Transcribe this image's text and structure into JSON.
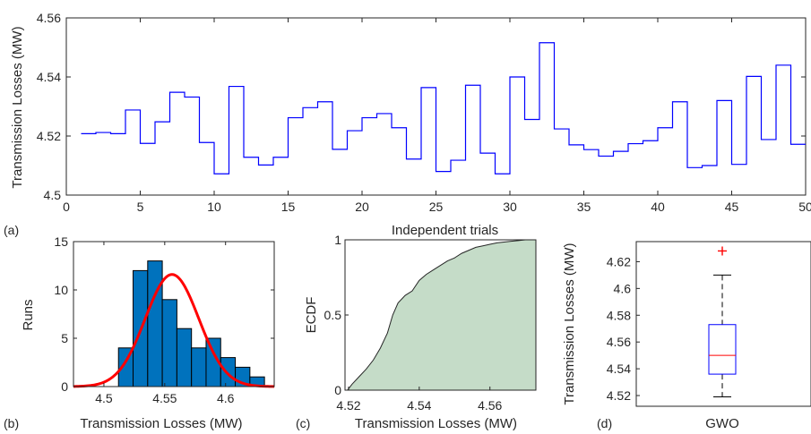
{
  "chart_data": [
    {
      "panel": "(a)",
      "type": "line",
      "xlabel": "Independent trials",
      "ylabel": "Transmission Losses (MW)",
      "xlim": [
        0,
        50
      ],
      "ylim": [
        4.5,
        4.56
      ],
      "xticks": [
        "0",
        "5",
        "10",
        "15",
        "20",
        "25",
        "30",
        "35",
        "40",
        "45",
        "50"
      ],
      "yticks": [
        "4.5",
        "4.52",
        "4.54",
        "4.56"
      ],
      "grid": false,
      "x": [
        1,
        2,
        3,
        4,
        5,
        6,
        7,
        8,
        9,
        10,
        11,
        12,
        13,
        14,
        15,
        16,
        17,
        18,
        19,
        20,
        21,
        22,
        23,
        24,
        25,
        26,
        27,
        28,
        29,
        30,
        31,
        32,
        33,
        34,
        35,
        36,
        37,
        38,
        39,
        40,
        41,
        42,
        43,
        44,
        45,
        46,
        47,
        48,
        49,
        50
      ],
      "values": [
        4.5208,
        4.5212,
        4.5208,
        4.5288,
        4.5175,
        4.5248,
        4.5348,
        4.5332,
        4.5178,
        4.5072,
        4.5368,
        4.5128,
        4.5102,
        4.5128,
        4.5262,
        4.5296,
        4.5316,
        4.5155,
        4.5218,
        4.5262,
        4.5276,
        4.5228,
        4.5122,
        4.5364,
        4.508,
        4.5118,
        4.5372,
        4.5142,
        4.5072,
        4.54,
        4.5256,
        4.5516,
        4.5224,
        4.517,
        4.5154,
        4.5132,
        4.5148,
        4.5174,
        4.5184,
        4.5228,
        4.5316,
        4.5093,
        4.51,
        4.532,
        4.5104,
        4.5402,
        4.5188,
        4.544,
        4.5172,
        4.5172
      ]
    },
    {
      "panel": "(b)",
      "type": "bar",
      "xlabel": "Transmission Losses (MW)",
      "ylabel": "Runs",
      "xlim": [
        4.475,
        4.64
      ],
      "ylim": [
        0,
        15
      ],
      "xticks": [
        "4.5",
        "4.55",
        "4.6"
      ],
      "yticks": [
        "0",
        "5",
        "10",
        "15"
      ],
      "bin_edges": [
        4.512,
        4.524,
        4.536,
        4.548,
        4.56,
        4.572,
        4.584,
        4.596,
        4.608,
        4.62,
        4.632
      ],
      "values": [
        4,
        12,
        13,
        9,
        6,
        4,
        5,
        3,
        2,
        1
      ],
      "fit": {
        "mean": 4.556,
        "sd": 0.022,
        "peak": 11.6
      }
    },
    {
      "panel": "(c)",
      "type": "area",
      "xlabel": "Transmission Losses (MW)",
      "ylabel": "ECDF",
      "xlim": [
        4.519,
        4.573
      ],
      "ylim": [
        0,
        1
      ],
      "xticks": [
        "4.52",
        "4.54",
        "4.56"
      ],
      "yticks": [
        "0",
        "0.5",
        "1"
      ],
      "x": [
        4.5197,
        4.521,
        4.523,
        4.525,
        4.527,
        4.529,
        4.531,
        4.5325,
        4.534,
        4.536,
        4.538,
        4.54,
        4.542,
        4.544,
        4.546,
        4.548,
        4.55,
        4.552,
        4.554,
        4.556,
        4.558,
        4.56,
        4.562,
        4.564,
        4.566,
        4.568,
        4.57,
        4.573
      ],
      "values": [
        0.0,
        0.04,
        0.09,
        0.14,
        0.2,
        0.28,
        0.38,
        0.5,
        0.58,
        0.63,
        0.66,
        0.73,
        0.77,
        0.8,
        0.83,
        0.86,
        0.88,
        0.91,
        0.93,
        0.95,
        0.96,
        0.97,
        0.98,
        0.985,
        0.99,
        0.995,
        1.0,
        1.0
      ],
      "fill": "#c5dcc8"
    },
    {
      "panel": "(d)",
      "type": "box",
      "xlabel": "",
      "ylabel": "Transmission Losses (MW)",
      "category": "GWO",
      "ylim": [
        4.512,
        4.635
      ],
      "yticks": [
        "4.52",
        "4.54",
        "4.56",
        "4.58",
        "4.6",
        "4.62"
      ],
      "whisker_low": 4.519,
      "q1": 4.536,
      "median": 4.55,
      "q3": 4.573,
      "whisker_high": 4.61,
      "outliers": [
        4.628
      ]
    }
  ],
  "colors": {
    "line": "#0000ff",
    "bar": "#0072bd",
    "fit": "#ff0000",
    "box": "#0000ff",
    "median": "#ff0000",
    "outlier": "#ff0000",
    "ecdf_fill": "#c5dcc8"
  }
}
